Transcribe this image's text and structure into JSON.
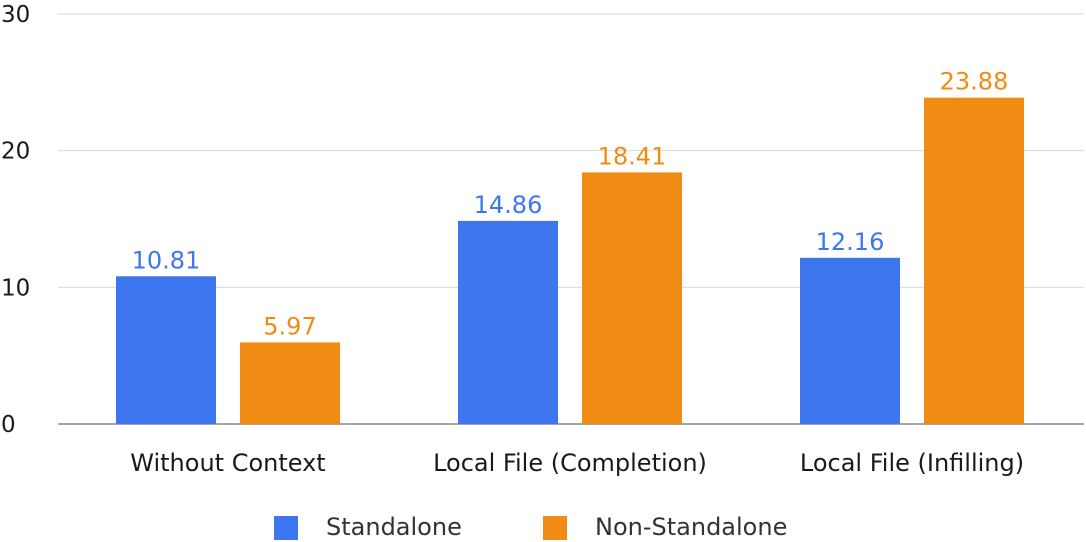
{
  "chart_data": {
    "type": "bar",
    "title": "",
    "xlabel": "",
    "ylabel": "",
    "ylim": [
      0,
      30
    ],
    "yticks": [
      0,
      10,
      20,
      30
    ],
    "grid": true,
    "legend_position": "bottom",
    "categories": [
      "Without Context",
      "Local File (Completion)",
      "Local File (Infilling)"
    ],
    "series": [
      {
        "name": "Standalone",
        "color": "#3d76ee",
        "values": [
          10.81,
          14.86,
          12.16
        ]
      },
      {
        "name": "Non-Standalone",
        "color": "#f08c14",
        "values": [
          5.97,
          18.41,
          23.88
        ]
      }
    ]
  }
}
